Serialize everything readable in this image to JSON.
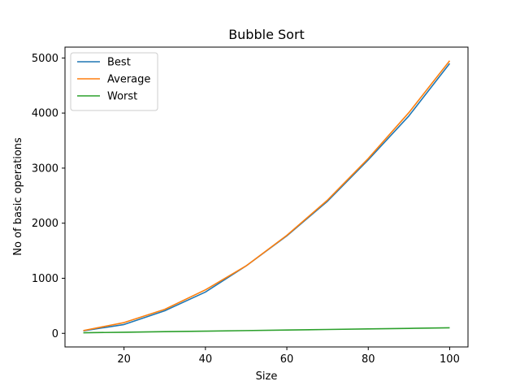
{
  "chart_data": {
    "type": "line",
    "title": "Bubble Sort",
    "xlabel": "Size",
    "ylabel": "No of basic operations",
    "xlim": [
      5.5,
      104.5
    ],
    "ylim": [
      -247,
      5197
    ],
    "xticks": [
      20,
      40,
      60,
      80,
      100
    ],
    "yticks": [
      0,
      1000,
      2000,
      3000,
      4000,
      5000
    ],
    "x": [
      10,
      20,
      30,
      40,
      50,
      60,
      70,
      80,
      90,
      100
    ],
    "legend": "top-left",
    "grid": false,
    "series": [
      {
        "name": "Best",
        "color": "#1f77b4",
        "values": [
          45,
          160,
          410,
          750,
          1225,
          1770,
          2400,
          3150,
          3950,
          4900
        ]
      },
      {
        "name": "Average",
        "color": "#ff7f0e",
        "values": [
          50,
          195,
          435,
          790,
          1225,
          1780,
          2420,
          3175,
          4010,
          4950
        ]
      },
      {
        "name": "Worst",
        "color": "#2ca02c",
        "values": [
          10,
          20,
          30,
          40,
          50,
          60,
          70,
          80,
          90,
          100
        ]
      }
    ]
  }
}
